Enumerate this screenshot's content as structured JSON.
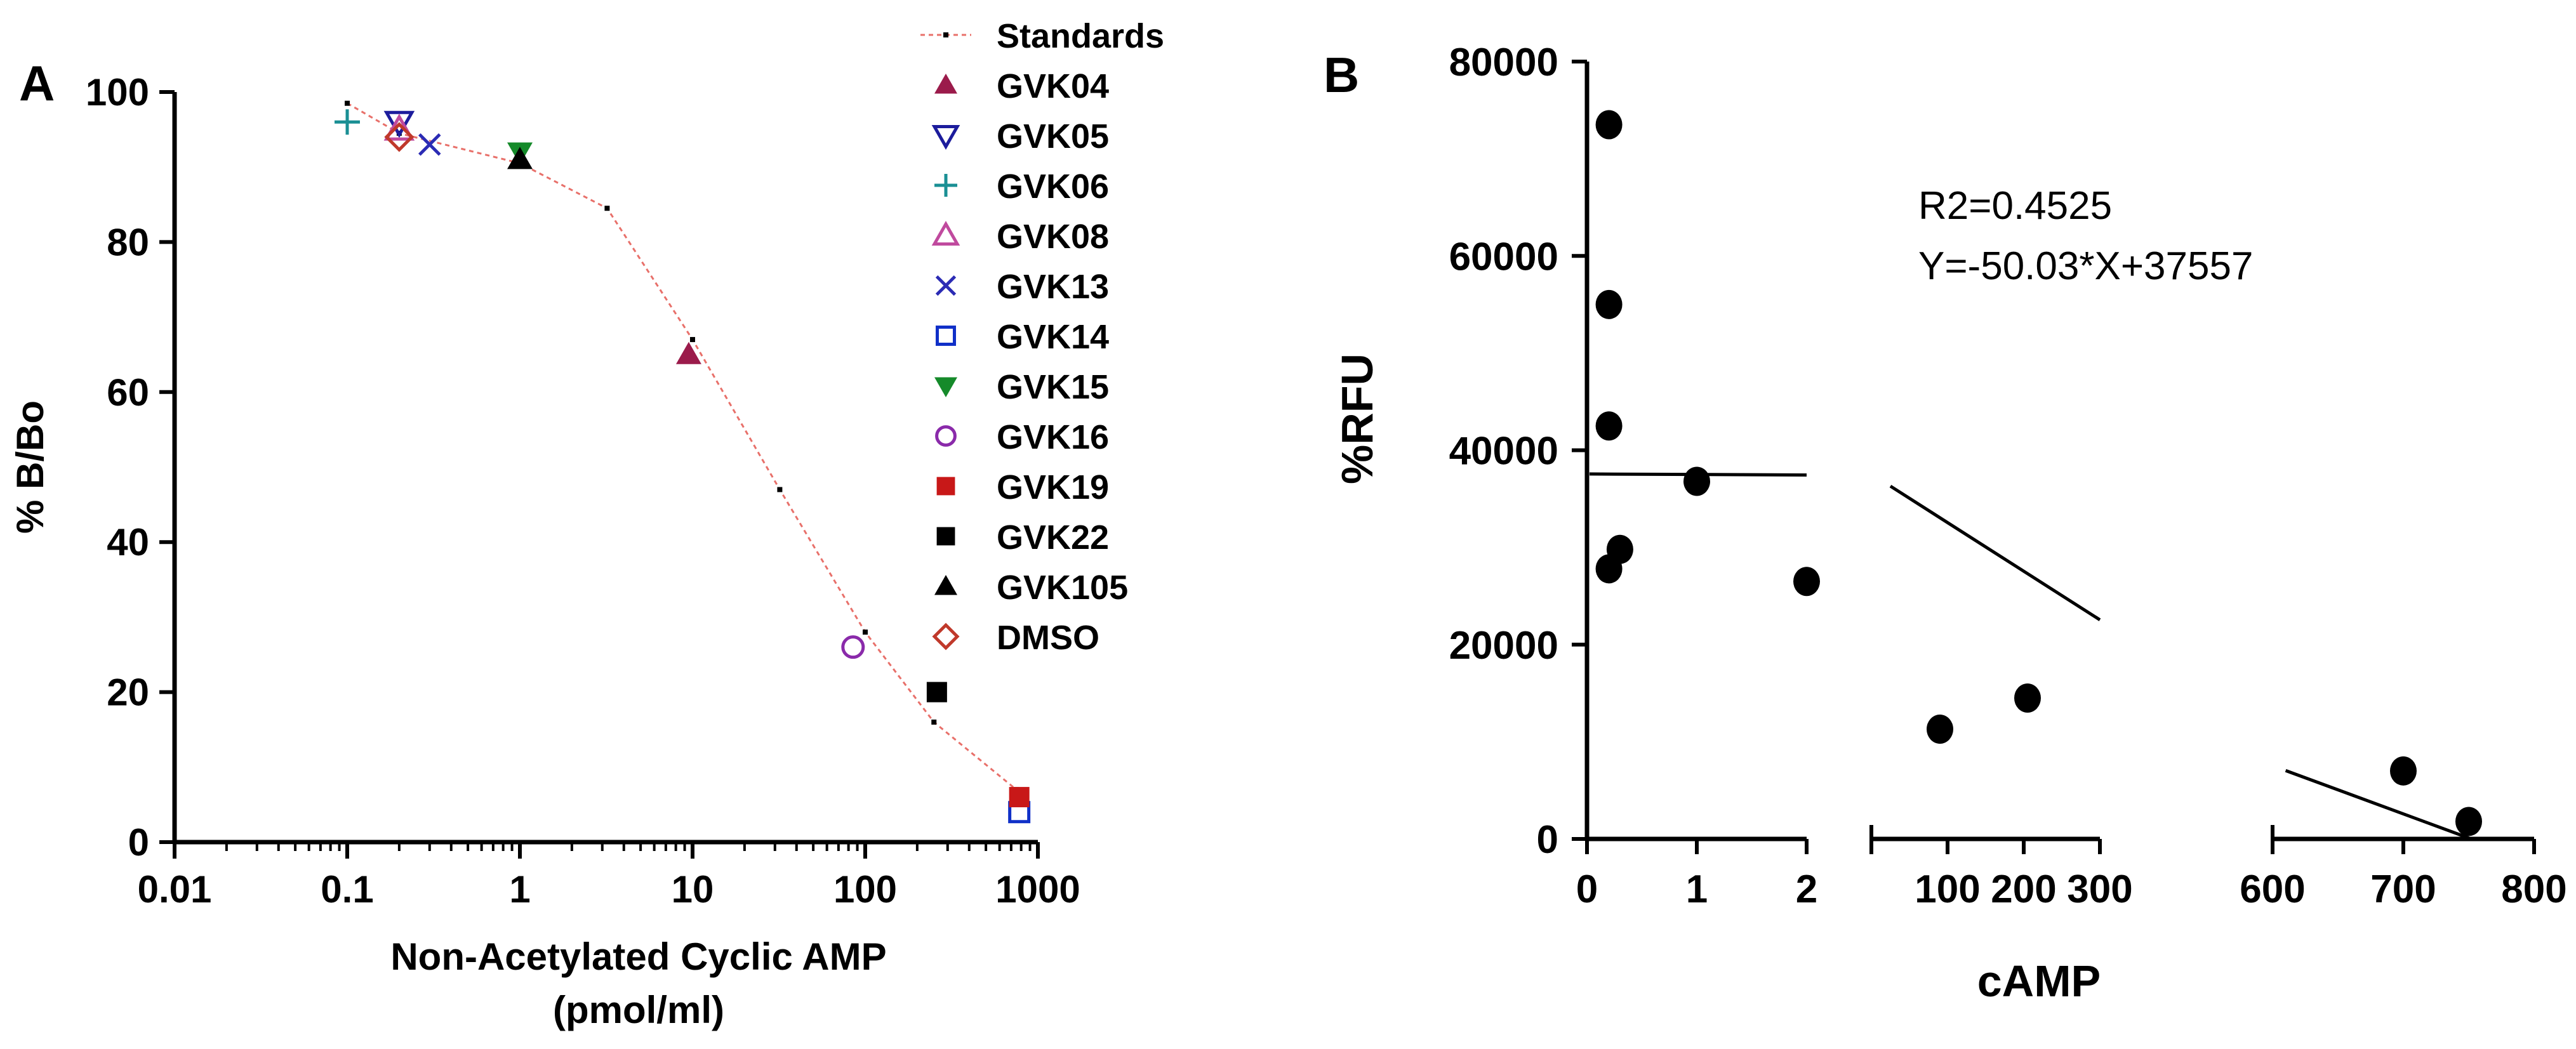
{
  "chart_data": [
    {
      "panel": "A",
      "type": "scatter",
      "xscale": "log",
      "xlabel": "Non-Acetylated Cyclic AMP",
      "xlabel2": "(pmol/ml)",
      "ylabel": "% B/Bo",
      "xlim": [
        0.01,
        1000
      ],
      "ylim": [
        0,
        100
      ],
      "xticks": [
        "0.01",
        "0.1",
        "1",
        "10",
        "100",
        "1000"
      ],
      "yticks": [
        "0",
        "20",
        "40",
        "60",
        "80",
        "100"
      ],
      "standards": {
        "name": "Standards",
        "color": "#e8706a",
        "x": [
          0.1,
          0.2,
          1.0,
          3.2,
          10,
          32,
          100,
          250,
          750
        ],
        "y": [
          98.5,
          94.5,
          90.5,
          84.5,
          67.0,
          47.0,
          28.0,
          16.0,
          7.0
        ]
      },
      "series": [
        {
          "name": "GVK04",
          "marker": "triangle-up",
          "color": "#9b1b4b",
          "x": 9.5,
          "y": 65
        },
        {
          "name": "GVK05",
          "marker": "triangle-down-open",
          "color": "#1c1c9c",
          "x": 0.2,
          "y": 96
        },
        {
          "name": "GVK06",
          "marker": "plus",
          "color": "#1a8f94",
          "x": 0.1,
          "y": 96
        },
        {
          "name": "GVK08",
          "marker": "triangle-up-open",
          "color": "#c04a9e",
          "x": 0.2,
          "y": 95
        },
        {
          "name": "GVK13",
          "marker": "x",
          "color": "#2b2bb4",
          "x": 0.3,
          "y": 93
        },
        {
          "name": "GVK14",
          "marker": "square-open",
          "color": "#1030c8",
          "x": 780,
          "y": 4
        },
        {
          "name": "GVK15",
          "marker": "triangle-down",
          "color": "#158a2a",
          "x": 1.0,
          "y": 92
        },
        {
          "name": "GVK16",
          "marker": "circle-open",
          "color": "#8a2aaa",
          "x": 85,
          "y": 26
        },
        {
          "name": "GVK19",
          "marker": "square",
          "color": "#c81818",
          "x": 780,
          "y": 6
        },
        {
          "name": "GVK22",
          "marker": "square",
          "color": "#000000",
          "x": 260,
          "y": 20
        },
        {
          "name": "GVK105",
          "marker": "triangle-up",
          "color": "#000000",
          "x": 1.0,
          "y": 91
        },
        {
          "name": "DMSO",
          "marker": "diamond-open",
          "color": "#c0392b",
          "x": 0.2,
          "y": 94
        }
      ]
    },
    {
      "panel": "B",
      "type": "scatter",
      "xlabel": "cAMP",
      "ylabel": "%RFU",
      "ylim": [
        0,
        80000
      ],
      "yticks": [
        "0",
        "20000",
        "40000",
        "60000",
        "80000"
      ],
      "annotation_r2": "R2=0.4525",
      "annotation_eq": "Y=-50.03*X+37557",
      "segments": [
        {
          "xlim": [
            0,
            2
          ],
          "xticks": [
            "0",
            "1",
            "2"
          ]
        },
        {
          "xlim": [
            0,
            300
          ],
          "xticks": [
            "100",
            "200",
            "300"
          ]
        },
        {
          "xlim": [
            600,
            800
          ],
          "xticks": [
            "600",
            "700",
            "800"
          ]
        }
      ],
      "points": [
        {
          "x": 0.2,
          "y": 73500
        },
        {
          "x": 0.2,
          "y": 55000
        },
        {
          "x": 0.2,
          "y": 42500
        },
        {
          "x": 0.3,
          "y": 29800
        },
        {
          "x": 0.2,
          "y": 27800
        },
        {
          "x": 1.0,
          "y": 36800
        },
        {
          "x": 2.0,
          "y": 26500
        },
        {
          "x": 90,
          "y": 11300
        },
        {
          "x": 205,
          "y": 14500
        },
        {
          "x": 700,
          "y": 7000
        },
        {
          "x": 750,
          "y": 1800
        }
      ],
      "fit": {
        "slope": -50.03,
        "intercept": 37557
      }
    }
  ]
}
